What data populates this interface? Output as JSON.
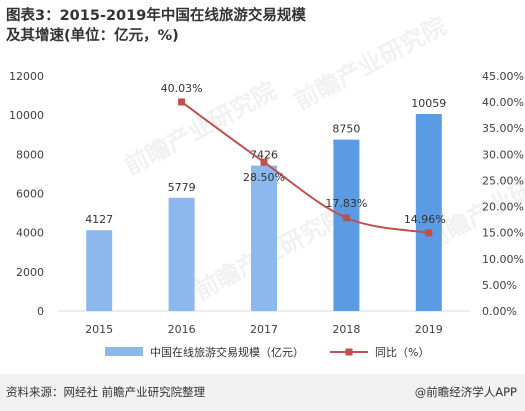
{
  "title": "图表3：2015-2019年中国在线旅游交易规模及其增速(单位：亿元，%)",
  "source_label": "资料来源：网经社 前瞻产业研究院整理",
  "brand_label": "@前瞻经济学人APP",
  "watermark_text": "前瞻产业研究院",
  "colors": {
    "bar_light": "#8db8ee",
    "bar_dark": "#5b9be3",
    "line": "#c0504d",
    "grid": "#d9d9d9"
  },
  "chart_data": {
    "type": "bar",
    "categories": [
      "2015",
      "2016",
      "2017",
      "2018",
      "2019"
    ],
    "series": [
      {
        "name": "中国在线旅游交易规模（亿元）",
        "type": "bar",
        "axis": "left",
        "values": [
          4127,
          5779,
          7426,
          8750,
          10059
        ]
      },
      {
        "name": "同比（%）",
        "type": "line",
        "axis": "right",
        "values": [
          null,
          40.03,
          28.5,
          17.83,
          14.96
        ],
        "labels": [
          "",
          "40.03%",
          "28.50%",
          "17.83%",
          "14.96%"
        ]
      }
    ],
    "ylim": [
      0,
      12000
    ],
    "yticks": [
      "0",
      "2000",
      "4000",
      "6000",
      "8000",
      "10000",
      "12000"
    ],
    "y2lim": [
      0,
      45
    ],
    "y2ticks": [
      "0.00%",
      "5.00%",
      "10.00%",
      "15.00%",
      "20.00%",
      "25.00%",
      "30.00%",
      "35.00%",
      "40.00%",
      "45.00%"
    ],
    "legend_position": "bottom",
    "grid": false
  }
}
